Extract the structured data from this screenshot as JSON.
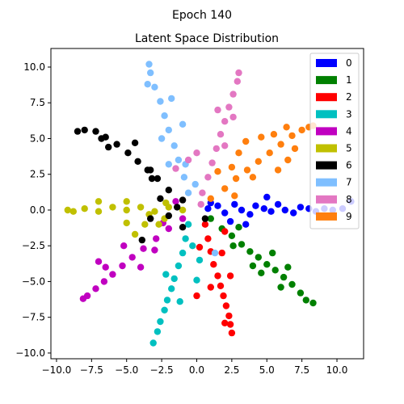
{
  "figure": {
    "suptitle": "Epoch 140"
  },
  "chart_data": {
    "type": "scatter",
    "title": "Latent Space Distribution",
    "xlabel": "",
    "ylabel": "",
    "xlim": [
      -10.4,
      11.9
    ],
    "ylim": [
      -10.4,
      11.3
    ],
    "xticks": [
      -10.0,
      -7.5,
      -5.0,
      -2.5,
      0.0,
      2.5,
      5.0,
      7.5,
      10.0
    ],
    "yticks": [
      -10.0,
      -7.5,
      -5.0,
      -2.5,
      0.0,
      2.5,
      5.0,
      7.5,
      10.0
    ],
    "xtick_labels": [
      "−10.0",
      "−7.5",
      "−5.0",
      "−2.5",
      "0.0",
      "2.5",
      "5.0",
      "7.5",
      "10.0"
    ],
    "ytick_labels": [
      "−10.0",
      "−7.5",
      "−5.0",
      "−2.5",
      "0.0",
      "2.5",
      "5.0",
      "7.5",
      "10.0"
    ],
    "grid": false,
    "legend_position": "top-right",
    "series": [
      {
        "name": "0",
        "color": "#0000ff",
        "points": [
          [
            0.8,
            0.1
          ],
          [
            1.5,
            0.3
          ],
          [
            2.0,
            -0.2
          ],
          [
            2.7,
            0.4
          ],
          [
            3.2,
            0.0
          ],
          [
            3.8,
            -0.3
          ],
          [
            4.2,
            0.3
          ],
          [
            4.8,
            0.1
          ],
          [
            5.3,
            -0.1
          ],
          [
            5.8,
            0.4
          ],
          [
            6.3,
            0.0
          ],
          [
            6.9,
            -0.2
          ],
          [
            7.4,
            0.2
          ],
          [
            8.0,
            0.1
          ],
          [
            8.5,
            -0.1
          ],
          [
            9.1,
            0.1
          ],
          [
            9.7,
            0.0
          ],
          [
            10.4,
            0.1
          ],
          [
            11.0,
            0.6
          ],
          [
            3.5,
            -1.0
          ],
          [
            5.0,
            0.9
          ],
          [
            2.4,
            -0.8
          ],
          [
            1.0,
            0.5
          ]
        ]
      },
      {
        "name": "1",
        "color": "#008000",
        "points": [
          [
            1.0,
            -0.6
          ],
          [
            1.8,
            -1.3
          ],
          [
            2.5,
            -1.8
          ],
          [
            3.2,
            -2.4
          ],
          [
            3.8,
            -2.9
          ],
          [
            4.4,
            -3.3
          ],
          [
            5.0,
            -3.8
          ],
          [
            5.6,
            -4.2
          ],
          [
            6.2,
            -4.7
          ],
          [
            6.8,
            -5.2
          ],
          [
            7.4,
            -5.8
          ],
          [
            7.8,
            -6.3
          ],
          [
            8.3,
            -6.5
          ],
          [
            5.4,
            -3.0
          ],
          [
            4.0,
            -3.9
          ],
          [
            6.5,
            -4.0
          ],
          [
            2.6,
            -2.5
          ],
          [
            3.0,
            -1.2
          ],
          [
            6.0,
            -5.4
          ],
          [
            4.6,
            -4.4
          ]
        ]
      },
      {
        "name": "2",
        "color": "#ff0000",
        "points": [
          [
            0.6,
            -1.0
          ],
          [
            0.8,
            -2.0
          ],
          [
            1.0,
            -2.9
          ],
          [
            1.2,
            -3.8
          ],
          [
            1.5,
            -4.6
          ],
          [
            1.7,
            -5.3
          ],
          [
            1.9,
            -6.0
          ],
          [
            2.1,
            -6.7
          ],
          [
            2.3,
            -7.4
          ],
          [
            2.4,
            -8.0
          ],
          [
            2.5,
            -8.6
          ],
          [
            1.0,
            -5.4
          ],
          [
            2.4,
            -4.6
          ],
          [
            0.2,
            -2.6
          ],
          [
            1.8,
            -3.0
          ],
          [
            0.0,
            -6.0
          ],
          [
            2.0,
            -7.9
          ],
          [
            2.0,
            -1.5
          ]
        ]
      },
      {
        "name": "3",
        "color": "#00c0c0",
        "points": [
          [
            -0.6,
            -1.0
          ],
          [
            -0.8,
            -2.0
          ],
          [
            -1.0,
            -3.0
          ],
          [
            -1.3,
            -3.9
          ],
          [
            -1.6,
            -4.8
          ],
          [
            -1.8,
            -5.5
          ],
          [
            -2.1,
            -6.3
          ],
          [
            -2.3,
            -7.0
          ],
          [
            -2.6,
            -7.8
          ],
          [
            -2.8,
            -8.5
          ],
          [
            -3.1,
            -9.3
          ],
          [
            -0.3,
            -2.5
          ],
          [
            0.0,
            -4.9
          ],
          [
            -1.2,
            -6.4
          ],
          [
            0.2,
            -3.5
          ],
          [
            -2.2,
            -4.5
          ]
        ]
      },
      {
        "name": "4",
        "color": "#c000c0",
        "points": [
          [
            -1.0,
            -0.6
          ],
          [
            -2.0,
            -1.3
          ],
          [
            -2.9,
            -2.0
          ],
          [
            -3.8,
            -2.7
          ],
          [
            -4.6,
            -3.3
          ],
          [
            -5.3,
            -3.9
          ],
          [
            -6.0,
            -4.5
          ],
          [
            -6.6,
            -5.0
          ],
          [
            -7.2,
            -5.5
          ],
          [
            -7.8,
            -6.0
          ],
          [
            -8.1,
            -6.2
          ],
          [
            -6.5,
            -4.0
          ],
          [
            -4.0,
            -4.0
          ],
          [
            -3.0,
            -2.8
          ],
          [
            -7.0,
            -3.6
          ],
          [
            -5.2,
            -2.5
          ],
          [
            -2.4,
            -0.9
          ],
          [
            -1.5,
            0.6
          ]
        ]
      },
      {
        "name": "5",
        "color": "#c0c000",
        "points": [
          [
            -1.0,
            0.0
          ],
          [
            -2.0,
            0.2
          ],
          [
            -3.0,
            -0.1
          ],
          [
            -4.0,
            0.2
          ],
          [
            -5.0,
            0.0
          ],
          [
            -6.0,
            0.2
          ],
          [
            -7.0,
            -0.1
          ],
          [
            -8.0,
            0.1
          ],
          [
            -8.8,
            -0.1
          ],
          [
            -9.2,
            0.0
          ],
          [
            -3.7,
            -1.0
          ],
          [
            -2.7,
            -1.0
          ],
          [
            -5.0,
            -0.9
          ],
          [
            -5.0,
            0.6
          ],
          [
            -7.0,
            0.6
          ],
          [
            -4.4,
            -1.7
          ],
          [
            -2.2,
            0.5
          ],
          [
            -3.4,
            -0.3
          ],
          [
            -2.3,
            -0.6
          ]
        ]
      },
      {
        "name": "6",
        "color": "#000000",
        "points": [
          [
            -1.0,
            0.7
          ],
          [
            -2.0,
            1.4
          ],
          [
            -2.8,
            2.2
          ],
          [
            -3.5,
            2.8
          ],
          [
            -4.2,
            3.4
          ],
          [
            -4.9,
            4.0
          ],
          [
            -5.7,
            4.6
          ],
          [
            -6.5,
            5.1
          ],
          [
            -7.2,
            5.5
          ],
          [
            -8.0,
            5.6
          ],
          [
            -8.5,
            5.5
          ],
          [
            -6.3,
            4.4
          ],
          [
            -4.4,
            4.7
          ],
          [
            -3.2,
            2.2
          ],
          [
            -2.6,
            0.8
          ],
          [
            -3.3,
            -0.6
          ],
          [
            -2.0,
            -0.4
          ],
          [
            -1.0,
            -1.2
          ],
          [
            -6.8,
            5.0
          ],
          [
            -1.4,
            0.2
          ],
          [
            0.6,
            -0.6
          ],
          [
            -3.9,
            -2.1
          ],
          [
            -3.3,
            2.8
          ]
        ]
      },
      {
        "name": "7",
        "color": "#7fbfff",
        "points": [
          [
            -0.6,
            1.2
          ],
          [
            -0.9,
            2.3
          ],
          [
            -1.3,
            3.5
          ],
          [
            -1.6,
            4.5
          ],
          [
            -2.0,
            5.6
          ],
          [
            -2.3,
            6.6
          ],
          [
            -2.6,
            7.6
          ],
          [
            -3.0,
            8.6
          ],
          [
            -3.3,
            9.6
          ],
          [
            -3.4,
            10.2
          ],
          [
            -2.5,
            5.0
          ],
          [
            -1.0,
            6.0
          ],
          [
            -0.1,
            1.8
          ],
          [
            -0.8,
            3.2
          ],
          [
            -3.5,
            8.8
          ],
          [
            -1.8,
            7.8
          ],
          [
            -2.0,
            3.2
          ],
          [
            1.3,
            -3.0
          ]
        ]
      },
      {
        "name": "8",
        "color": "#e377c2",
        "points": [
          [
            0.4,
            1.2
          ],
          [
            0.8,
            2.3
          ],
          [
            1.1,
            3.3
          ],
          [
            1.4,
            4.3
          ],
          [
            1.7,
            5.3
          ],
          [
            2.0,
            6.2
          ],
          [
            2.3,
            7.2
          ],
          [
            2.6,
            8.1
          ],
          [
            2.9,
            9.0
          ],
          [
            3.0,
            9.6
          ],
          [
            0.0,
            4.0
          ],
          [
            -1.5,
            2.9
          ],
          [
            -0.6,
            3.5
          ],
          [
            2.0,
            4.5
          ],
          [
            1.5,
            7.0
          ],
          [
            2.6,
            6.5
          ],
          [
            0.3,
            0.4
          ]
        ]
      },
      {
        "name": "9",
        "color": "#ff7f0e",
        "points": [
          [
            1.0,
            0.8
          ],
          [
            2.0,
            1.5
          ],
          [
            2.8,
            2.2
          ],
          [
            3.6,
            2.8
          ],
          [
            4.4,
            3.4
          ],
          [
            5.2,
            4.0
          ],
          [
            6.0,
            4.6
          ],
          [
            6.8,
            5.2
          ],
          [
            7.5,
            5.6
          ],
          [
            8.0,
            5.8
          ],
          [
            8.3,
            5.9
          ],
          [
            5.5,
            5.3
          ],
          [
            3.0,
            4.0
          ],
          [
            2.5,
            3.0
          ],
          [
            6.5,
            3.5
          ],
          [
            4.0,
            2.3
          ],
          [
            7.0,
            4.3
          ],
          [
            5.8,
            2.8
          ],
          [
            1.5,
            2.7
          ],
          [
            2.7,
            1.0
          ],
          [
            4.6,
            5.1
          ],
          [
            3.5,
            4.8
          ],
          [
            6.4,
            5.8
          ]
        ]
      }
    ]
  }
}
